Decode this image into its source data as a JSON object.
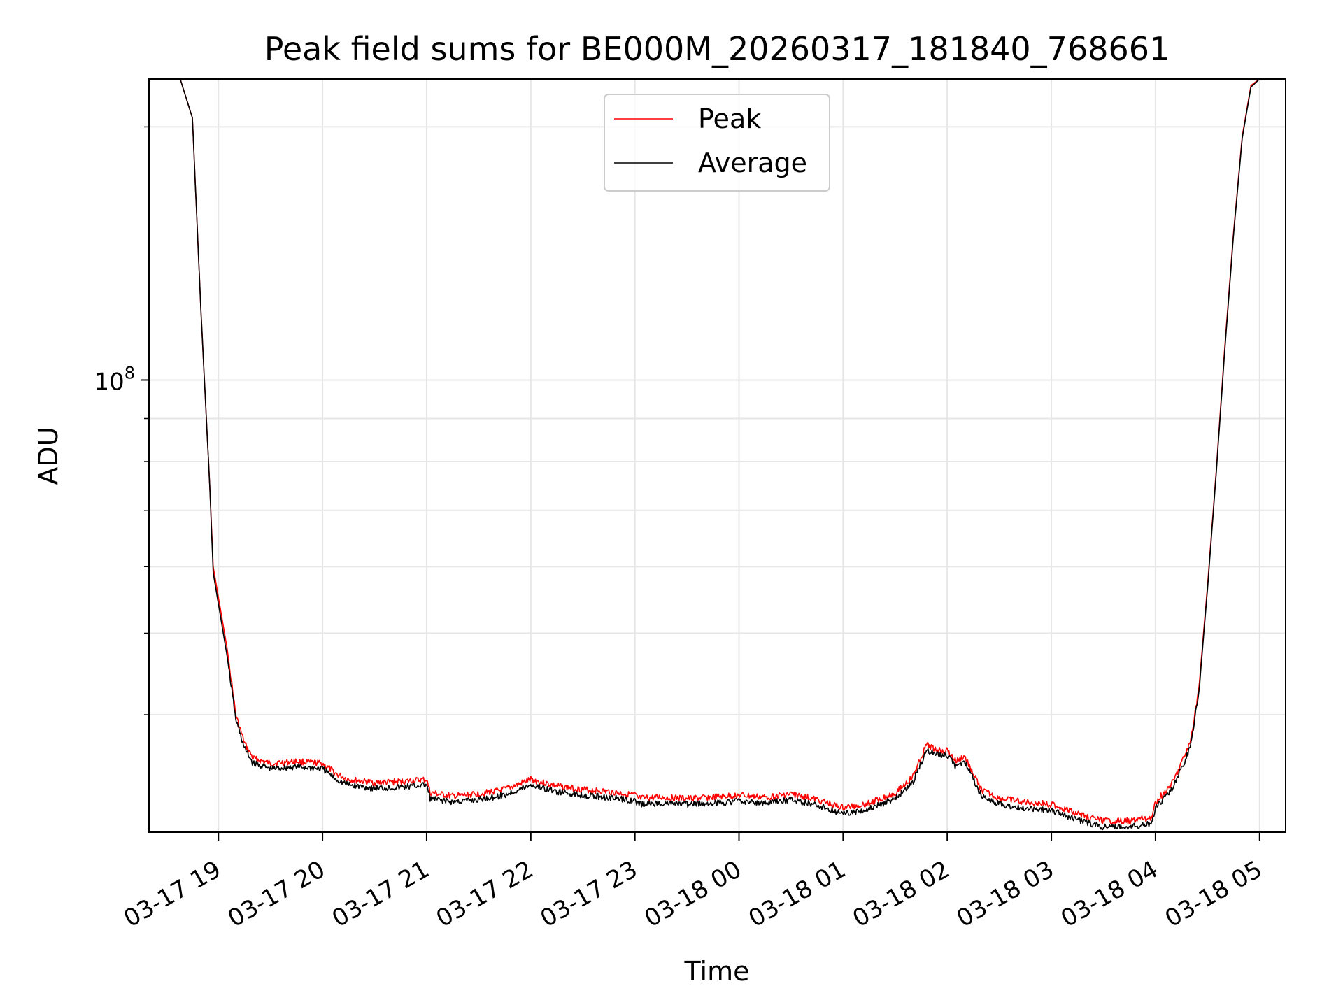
{
  "chart_data": {
    "type": "line",
    "title": "Peak field sums for BE000M_20260317_181840_768661",
    "xlabel": "Time",
    "ylabel": "ADU",
    "y_scale": "log",
    "ylim": [
      29000000,
      228000000
    ],
    "xlim": [
      "03-17 18:20",
      "03-18 05:15"
    ],
    "grid": true,
    "legend_position": "top-center",
    "x_ticks": [
      "03-17 19",
      "03-17 20",
      "03-17 21",
      "03-17 22",
      "03-17 23",
      "03-18 00",
      "03-18 01",
      "03-18 02",
      "03-18 03",
      "03-18 04",
      "03-18 05"
    ],
    "x_tick_times": [
      "03-17 19:00",
      "03-17 20:00",
      "03-17 21:00",
      "03-17 22:00",
      "03-17 23:00",
      "03-18 00:00",
      "03-18 01:00",
      "03-18 02:00",
      "03-18 03:00",
      "03-18 04:00",
      "03-18 05:00"
    ],
    "y_ticks": [
      {
        "label": "10",
        "exponent": "8",
        "value": 100000000
      }
    ],
    "y_minor_ticks": [
      40000000,
      50000000,
      60000000,
      70000000,
      80000000,
      90000000,
      200000000
    ],
    "x": [
      "03-17 18:38",
      "03-17 18:45",
      "03-17 18:50",
      "03-17 18:55",
      "03-17 18:57",
      "03-17 19:05",
      "03-17 19:10",
      "03-17 19:15",
      "03-17 19:20",
      "03-17 19:30",
      "03-17 19:45",
      "03-17 20:00",
      "03-17 20:08",
      "03-17 20:15",
      "03-17 20:30",
      "03-17 20:45",
      "03-17 21:00",
      "03-17 21:02",
      "03-17 21:15",
      "03-17 21:30",
      "03-17 21:45",
      "03-17 22:00",
      "03-17 22:15",
      "03-17 22:30",
      "03-17 22:45",
      "03-17 23:00",
      "03-17 23:02",
      "03-17 23:15",
      "03-17 23:30",
      "03-17 23:45",
      "03-18 00:00",
      "03-18 00:15",
      "03-18 00:30",
      "03-18 00:45",
      "03-18 01:00",
      "03-18 01:15",
      "03-18 01:30",
      "03-18 01:40",
      "03-18 01:48",
      "03-18 01:55",
      "03-18 02:00",
      "03-18 02:05",
      "03-18 02:10",
      "03-18 02:15",
      "03-18 02:20",
      "03-18 02:30",
      "03-18 02:45",
      "03-18 03:00",
      "03-18 03:15",
      "03-18 03:30",
      "03-18 03:45",
      "03-18 03:58",
      "03-18 04:00",
      "03-18 04:10",
      "03-18 04:20",
      "03-18 04:25",
      "03-18 04:30",
      "03-18 04:35",
      "03-18 04:40",
      "03-18 04:45",
      "03-18 04:50",
      "03-18 04:55",
      "03-18 05:00"
    ],
    "series": [
      {
        "name": "Peak",
        "color": "#ff0000",
        "values": [
          228000000,
          205000000,
          120000000,
          75000000,
          60000000,
          48000000,
          40000000,
          37000000,
          35500000,
          35000000,
          35200000,
          35000000,
          34000000,
          33500000,
          33200000,
          33300000,
          33500000,
          32300000,
          32000000,
          32200000,
          32600000,
          33500000,
          32900000,
          32600000,
          32400000,
          32100000,
          31800000,
          31900000,
          31800000,
          31900000,
          32100000,
          31900000,
          32200000,
          31700000,
          31000000,
          31400000,
          32300000,
          33700000,
          36800000,
          36300000,
          36300000,
          35200000,
          35700000,
          34000000,
          32500000,
          31800000,
          31500000,
          31300000,
          30500000,
          29900000,
          29900000,
          30200000,
          31500000,
          33200000,
          37000000,
          43000000,
          57000000,
          78000000,
          110000000,
          150000000,
          195000000,
          224000000,
          228000000
        ]
      },
      {
        "name": "Average",
        "color": "#000000",
        "values": [
          228000000,
          205000000,
          120000000,
          75000000,
          59000000,
          47000000,
          39500000,
          36500000,
          35000000,
          34500000,
          34700000,
          34500000,
          33500000,
          33000000,
          32700000,
          32800000,
          33000000,
          31800000,
          31500000,
          31700000,
          32100000,
          33000000,
          32400000,
          32100000,
          31900000,
          31600000,
          31300000,
          31400000,
          31300000,
          31400000,
          31600000,
          31400000,
          31700000,
          31200000,
          30500000,
          30900000,
          31800000,
          33200000,
          36300000,
          35800000,
          35800000,
          34700000,
          35200000,
          33500000,
          32000000,
          31300000,
          31000000,
          30800000,
          30000000,
          29400000,
          29400000,
          29700000,
          31000000,
          32700000,
          36500000,
          42500000,
          56500000,
          77500000,
          109000000,
          149000000,
          194000000,
          223000000,
          228000000
        ]
      }
    ]
  }
}
